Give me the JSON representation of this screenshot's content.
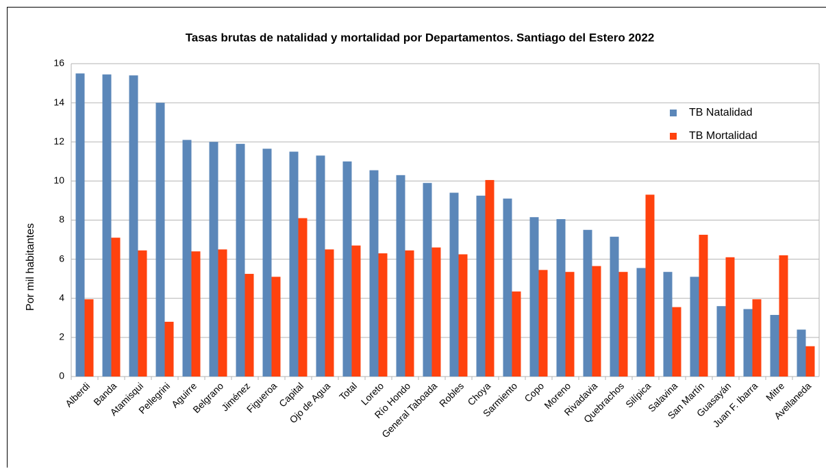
{
  "chart_data": {
    "type": "bar",
    "title": "Tasas brutas de natalidad y mortalidad por Departamentos. Santiago del Estero 2022",
    "y_label": "Por mil habitantes",
    "categories": [
      "Alberdi",
      "Banda",
      "Atamisqui",
      "Pellegrini",
      "Aguirre",
      "Belgrano",
      "Jiménez",
      "Figueroa",
      "Capital",
      "Ojo de Agua",
      "Total",
      "Loreto",
      "Río Hondo",
      "General Taboada",
      "Robles",
      "Choya",
      "Sarmiento",
      "Copo",
      "Moreno",
      "Rivadavia",
      "Quebrachos",
      "Silípica",
      "Salavina",
      "San Martín",
      "Guasayán",
      "Juan F. Ibarra",
      "Mitre",
      "Avellaneda"
    ],
    "series": [
      {
        "name": "TB Natalidad",
        "color": "#5b87b9",
        "values": [
          15.5,
          15.45,
          15.4,
          14.0,
          12.1,
          12.0,
          11.9,
          11.65,
          11.5,
          11.3,
          11.0,
          10.55,
          10.3,
          9.9,
          9.4,
          9.25,
          9.1,
          8.15,
          8.05,
          7.5,
          7.15,
          5.55,
          5.35,
          5.1,
          3.6,
          3.45,
          3.15,
          2.4
        ]
      },
      {
        "name": "TB Mortalidad",
        "color": "#ff420e",
        "values": [
          3.95,
          7.1,
          6.45,
          2.8,
          6.4,
          6.5,
          5.25,
          5.1,
          8.1,
          6.5,
          6.7,
          6.3,
          6.45,
          6.6,
          6.25,
          10.05,
          4.35,
          5.45,
          5.35,
          5.65,
          5.35,
          9.3,
          3.55,
          7.25,
          6.1,
          3.95,
          6.2,
          1.55
        ]
      }
    ],
    "ylim": [
      0,
      16
    ],
    "yticks": [
      0,
      2,
      4,
      6,
      8,
      10,
      12,
      14,
      16
    ],
    "grid": true,
    "legend": "upper right"
  }
}
